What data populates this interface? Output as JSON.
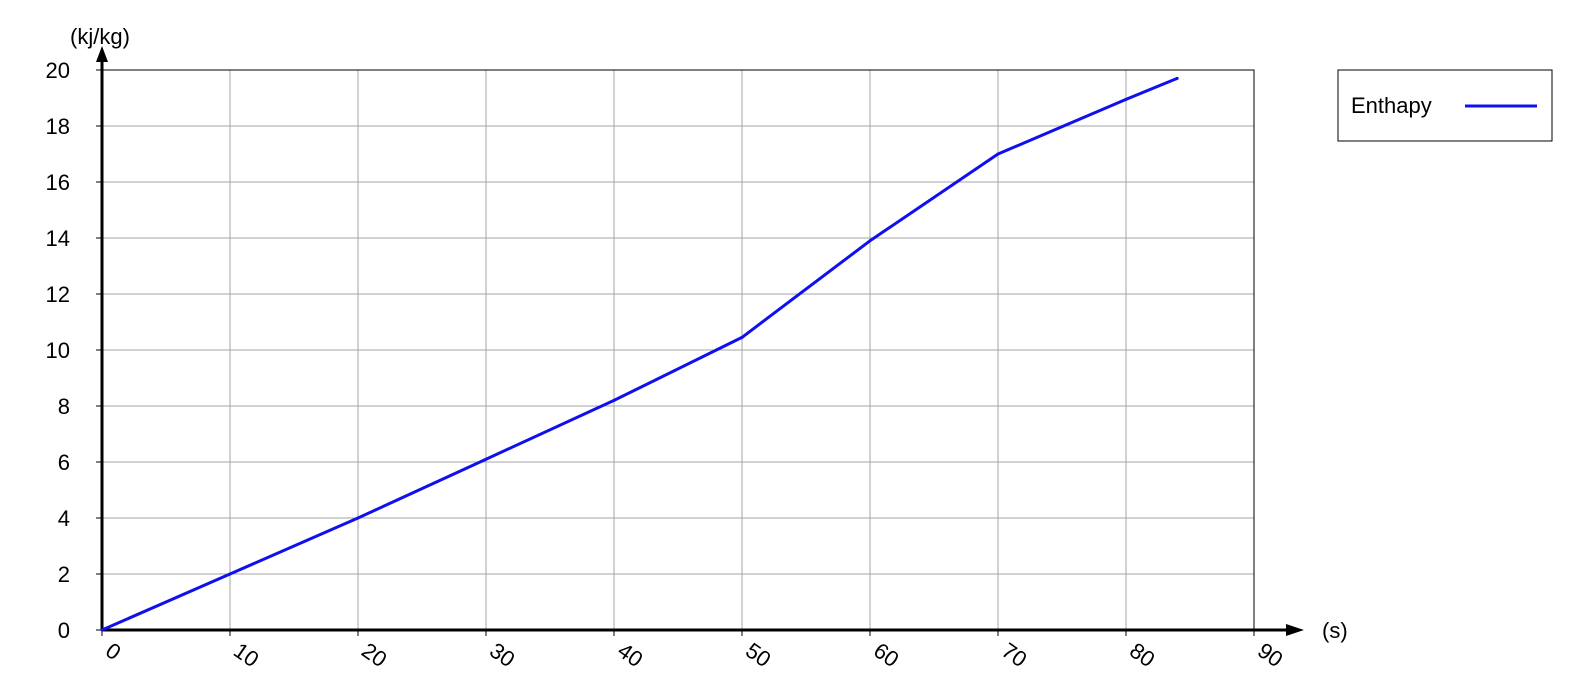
{
  "chart_data": {
    "type": "line",
    "x": [
      0,
      10,
      20,
      30,
      40,
      50,
      60,
      70,
      80,
      84
    ],
    "series": [
      {
        "name": "Enthapy",
        "color": "#1010ee",
        "values": [
          0,
          2.0,
          4.0,
          6.1,
          8.2,
          10.45,
          13.9,
          17.0,
          18.95,
          19.7
        ]
      }
    ],
    "xlabel": "(s)",
    "ylabel": "(kj/kg)",
    "xlim": [
      0,
      90
    ],
    "ylim": [
      0,
      20
    ],
    "xticks": [
      "0",
      "10",
      "20",
      "30",
      "40",
      "50",
      "60",
      "70",
      "80",
      "90"
    ],
    "yticks": [
      "0",
      "2",
      "4",
      "6",
      "8",
      "10",
      "12",
      "14",
      "16",
      "18",
      "20"
    ],
    "grid": true,
    "legend_position": "top-right"
  }
}
